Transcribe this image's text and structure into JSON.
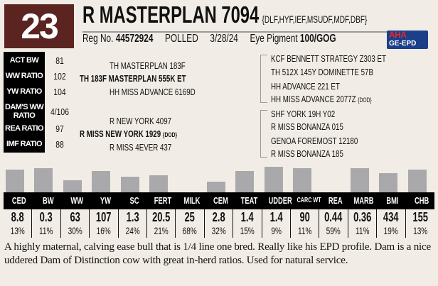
{
  "lot_number": "23",
  "name": "R MASTERPLAN 7094",
  "genetic_tests": "{DLF,HYF,IEF,MSUDF,MDF,DBF}",
  "reg_label": "Reg No.",
  "reg_no": "44572924",
  "polled": "POLLED",
  "birth_date": "3/28/24",
  "eye_label": "Eye Pigment",
  "eye_pigment": "100/GOG",
  "logo": {
    "top": "AHA",
    "bottom": "GE-EPD"
  },
  "ratios": [
    {
      "label": "ACT BW",
      "value": "81"
    },
    {
      "label": "WW RATIO",
      "value": "102"
    },
    {
      "label": "YW RATIO",
      "value": "104"
    },
    {
      "label": "DAM'S WW RATIO",
      "value": "4/106"
    },
    {
      "label": "REA RATIO",
      "value": "97"
    },
    {
      "label": "IMF RATIO",
      "value": "88"
    }
  ],
  "pedigree": {
    "sire": "TH 183F MASTERPLAN 555K ET",
    "sire_sire": "TH MASTERPLAN 183F",
    "sire_dam": "HH MISS ADVANCE 6169D",
    "dam": "R MISS NEW YORK 1929",
    "dam_tag": "{DOD}",
    "dam_sire": "R NEW YORK 4097",
    "dam_dam": "R MISS 4EVER 437",
    "ss_sire": "KCF BENNETT STRATEGY Z303 ET",
    "ss_dam": "TH 512X 145Y DOMINETTE 57B",
    "sd_sire": "HH ADVANCE 221 ET",
    "sd_dam": "HH MISS ADVANCE 2077Z",
    "sd_dam_tag": "{DOD}",
    "ds_sire": "SHF YORK 19H Y02",
    "ds_dam": "R MISS BONANZA 015",
    "dd_sire": "GENOA FOREMOST 12180",
    "dd_dam": "R MISS BONANZA 185"
  },
  "epds": [
    {
      "label": "CED",
      "value": "8.8",
      "pct": "13%",
      "bar": 0.88
    },
    {
      "label": "BW",
      "value": "0.3",
      "pct": "11%",
      "bar": 0.94
    },
    {
      "label": "WW",
      "value": "63",
      "pct": "30%",
      "bar": 0.47
    },
    {
      "label": "YW",
      "value": "107",
      "pct": "16%",
      "bar": 0.82
    },
    {
      "label": "SC",
      "value": "1.3",
      "pct": "24%",
      "bar": 0.62
    },
    {
      "label": "FERT",
      "value": "20.5",
      "pct": "21%",
      "bar": 0.68
    },
    {
      "label": "MILK",
      "value": "25",
      "pct": "68%",
      "bar": 0
    },
    {
      "label": "CEM",
      "value": "2.8",
      "pct": "32%",
      "bar": 0.41
    },
    {
      "label": "TEAT",
      "value": "1.4",
      "pct": "15%",
      "bar": 0.82
    },
    {
      "label": "UDDER",
      "value": "1.4",
      "pct": "9%",
      "bar": 1.0
    },
    {
      "label": "CARC WT",
      "value": "90",
      "pct": "11%",
      "bar": 0.94
    },
    {
      "label": "REA",
      "value": "0.44",
      "pct": "59%",
      "bar": 0
    },
    {
      "label": "MARB",
      "value": "0.36",
      "pct": "11%",
      "bar": 0.94
    },
    {
      "label": "BMI",
      "value": "434",
      "pct": "19%",
      "bar": 0.74
    },
    {
      "label": "CHB",
      "value": "155",
      "pct": "13%",
      "bar": 0.88
    }
  ],
  "description": "A highly maternal, calving ease bull that is 1/4 line one bred. Really like his EPD profile. Dam is a nice uddered Dam of Distinction cow with great in-herd ratios. Used for natural service."
}
